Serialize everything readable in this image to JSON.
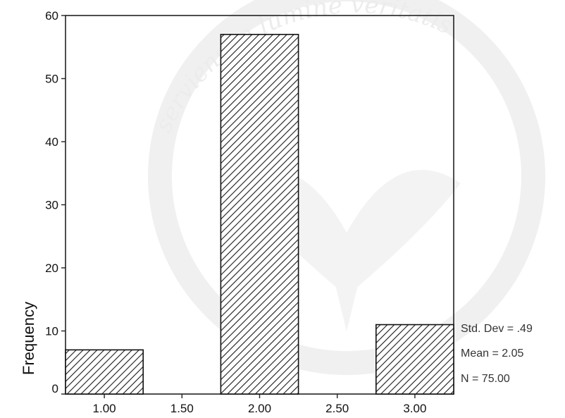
{
  "chart_data": {
    "type": "bar",
    "title": "",
    "xlabel": "",
    "ylabel": "Frequency",
    "x_ticks": [
      "1.00",
      "1.50",
      "2.00",
      "2.50",
      "3.00"
    ],
    "x_tick_values": [
      1.0,
      1.5,
      2.0,
      2.5,
      3.0
    ],
    "xlim": [
      0.75,
      3.25
    ],
    "y_ticks": [
      "0",
      "10",
      "20",
      "30",
      "40",
      "50",
      "60"
    ],
    "ylim": [
      0,
      60
    ],
    "bin_width": 0.5,
    "bins": [
      {
        "center": 1.0,
        "value": 7
      },
      {
        "center": 2.0,
        "value": 57
      },
      {
        "center": 3.0,
        "value": 11
      }
    ],
    "fill_pattern": "diagonal-hatch",
    "grid": false,
    "stats": {
      "std_dev": "Std. Dev = .49",
      "mean": "Mean = 2.05",
      "n": "N = 75.00"
    }
  },
  "watermark": {
    "text": "serviens in lumine veritatis"
  }
}
